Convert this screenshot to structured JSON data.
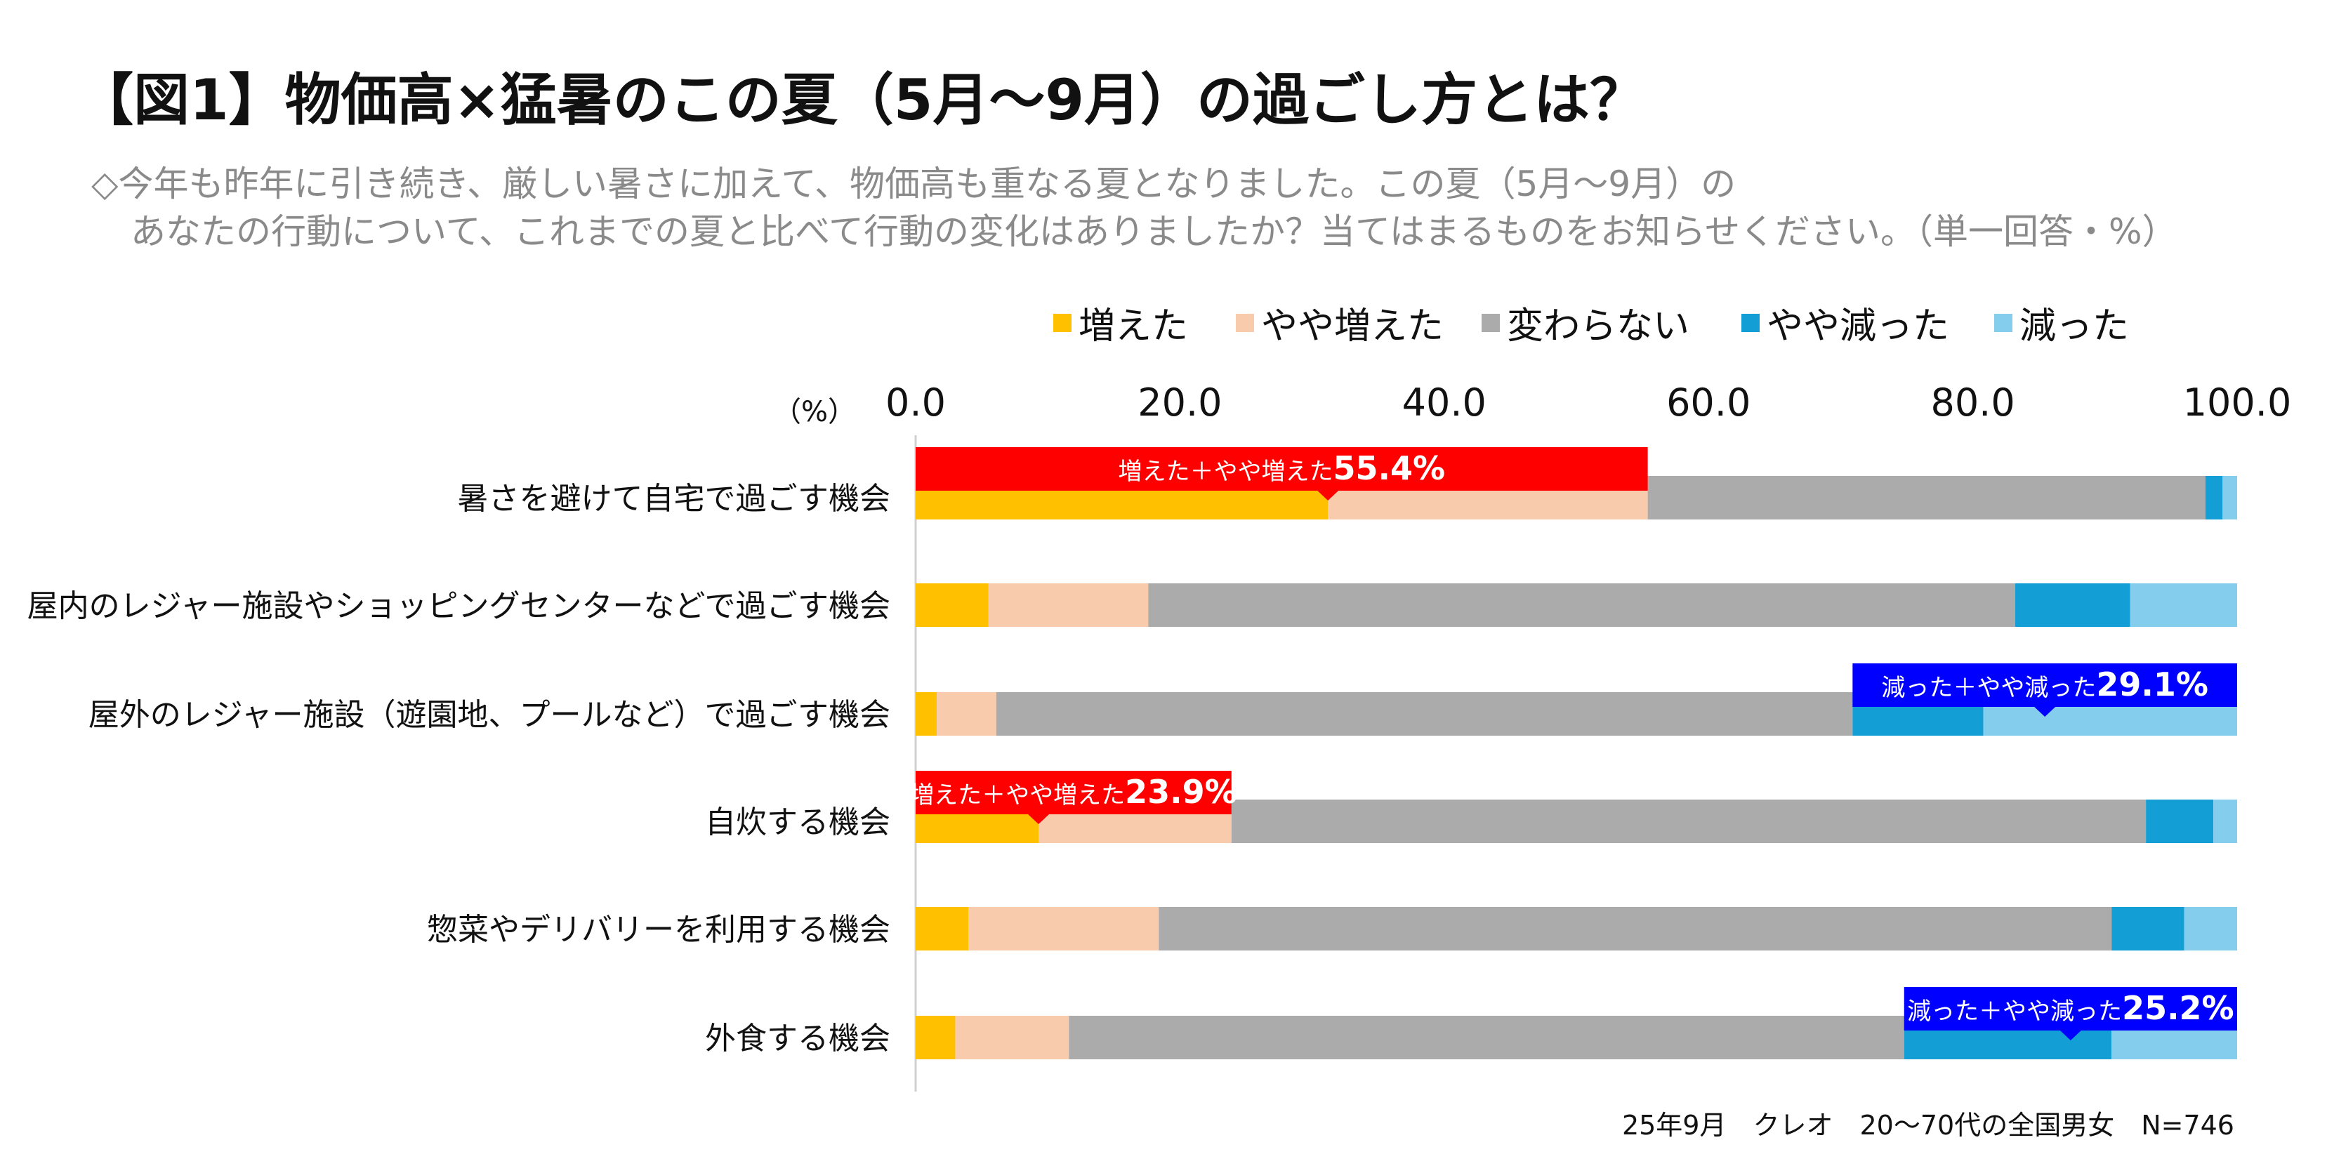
{
  "title": "【図1】物価高×猛暑のこの夏（5月～9月）の過ごし方とは？",
  "subtitle_line1": "◇今年も昨年に引き続き、厳しい暑さに加えて、物価高も重なる夏となりました。この夏（5月～9月）の",
  "subtitle_line2": "あなたの行動について、これまでの夏と比べて行動の変化はありましたか？当てはまるものをお知らせください。（単一回答・%）",
  "source": "25年9月　クレオ　20～70代の全国男女　N=746",
  "chart_data": {
    "type": "bar",
    "orientation": "horizontal",
    "stacked": true,
    "unit_label": "（%）",
    "xlim": [
      0,
      100
    ],
    "xticks": [
      "0.0",
      "20.0",
      "40.0",
      "60.0",
      "80.0",
      "100.0"
    ],
    "legend_position": "top",
    "categories": [
      "暑さを避けて自宅で過ごす機会",
      "屋内のレジャー施設やショッピングセンターなどで過ごす機会",
      "屋外のレジャー施設（遊園地、プールなど）で過ごす機会",
      "自炊する機会",
      "惣菜やデリバリーを利用する機会",
      "外食する機会"
    ],
    "series": [
      {
        "name": "増えた",
        "color": "#FFC000",
        "values": [
          31.2,
          5.5,
          1.6,
          9.3,
          4.0,
          3.0
        ]
      },
      {
        "name": "やや増えた",
        "color": "#F8CBAD",
        "values": [
          24.2,
          12.1,
          4.5,
          14.6,
          14.4,
          8.6
        ]
      },
      {
        "name": "変わらない",
        "color": "#ABABAB",
        "values": [
          42.2,
          65.6,
          64.8,
          69.2,
          72.1,
          63.2
        ]
      },
      {
        "name": "やや減った",
        "color": "#139FD6",
        "values": [
          1.3,
          8.7,
          9.9,
          5.1,
          5.5,
          15.7
        ]
      },
      {
        "name": "減った",
        "color": "#85CDED",
        "values": [
          1.1,
          8.1,
          19.2,
          1.8,
          4.0,
          9.5
        ]
      }
    ],
    "annotations": [
      {
        "row": 0,
        "type": "increase",
        "label": "増えた＋やや増えた",
        "value": "55.4%",
        "color": "#FF0000"
      },
      {
        "row": 2,
        "type": "decrease",
        "label": "減った＋やや減った",
        "value": "29.1%",
        "color": "#0000FF"
      },
      {
        "row": 3,
        "type": "increase",
        "label": "増えた＋やや増えた",
        "value": "23.9%",
        "color": "#FF0000"
      },
      {
        "row": 5,
        "type": "decrease",
        "label": "減った＋やや減った",
        "value": "25.2%",
        "color": "#0000FF"
      }
    ]
  }
}
